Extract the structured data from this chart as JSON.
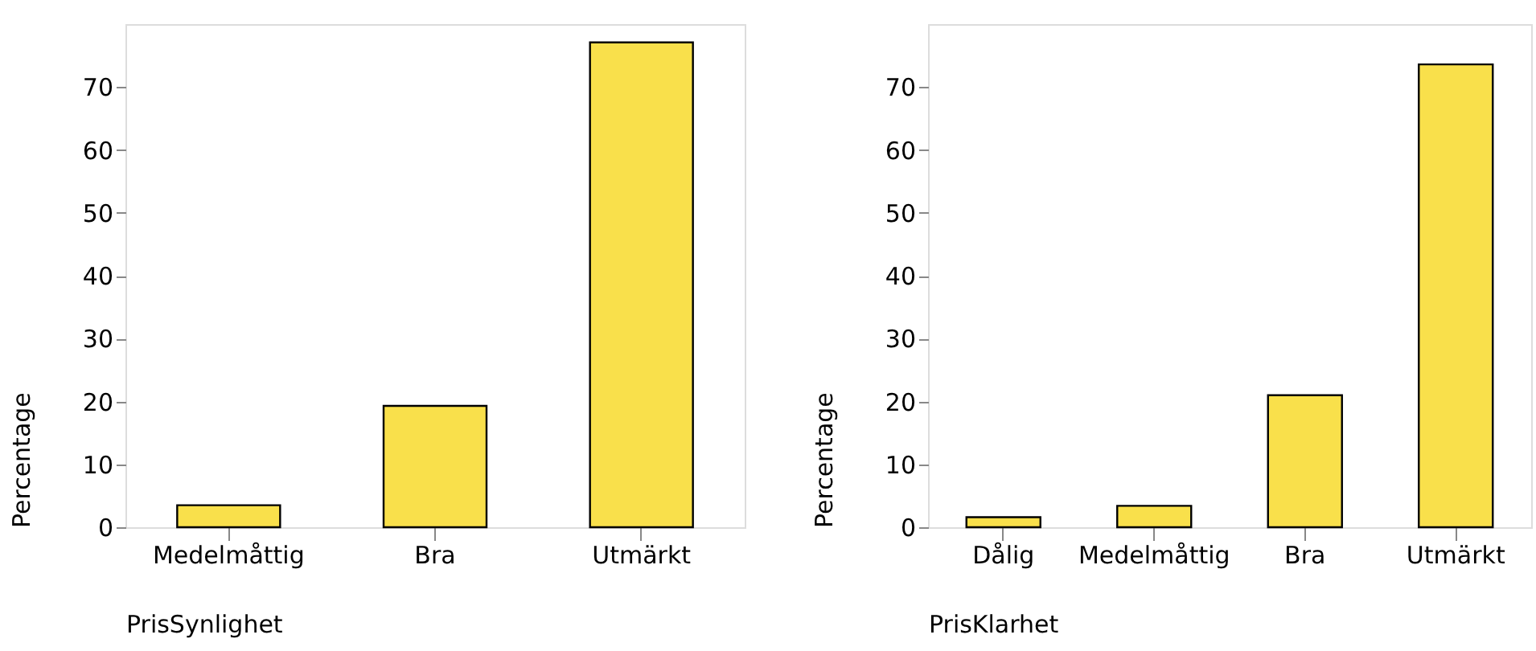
{
  "chart_data": [
    {
      "type": "bar",
      "categories": [
        "Medelmåttig",
        "Bra",
        "Utmärkt"
      ],
      "values": [
        3.5,
        19.3,
        77.1
      ],
      "color": "#f9e04b",
      "xlabel": "PrisSynlighet",
      "ylabel": "Percentage",
      "ylim": [
        0,
        80
      ],
      "yticks": [
        0,
        10,
        20,
        30,
        40,
        50,
        60,
        70
      ],
      "grid": false
    },
    {
      "type": "bar",
      "categories": [
        "Dålig",
        "Medelmåttig",
        "Bra",
        "Utmärkt"
      ],
      "values": [
        1.6,
        3.4,
        21.0,
        73.6
      ],
      "color": "#f9e04b",
      "xlabel": "PrisKlarhet",
      "ylabel": "Percentage",
      "ylim": [
        0,
        80
      ],
      "yticks": [
        0,
        10,
        20,
        30,
        40,
        50,
        60,
        70
      ],
      "grid": false
    }
  ]
}
